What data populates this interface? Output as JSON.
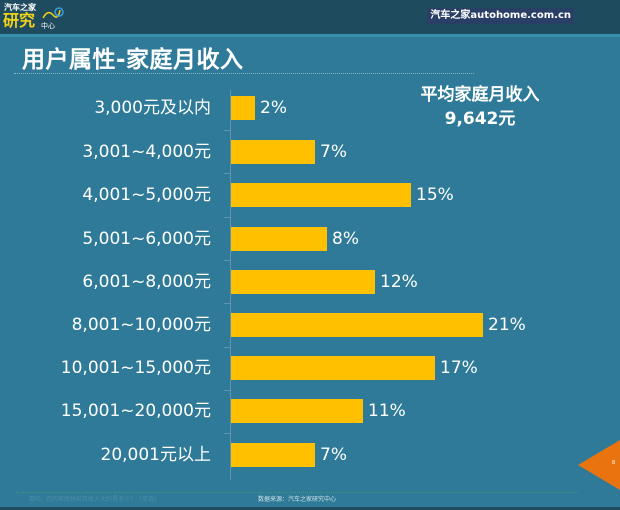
{
  "header": {
    "logo_top": "汽车之家",
    "logo_main": "研究",
    "logo_sub": "中心",
    "brand": "汽车之家autohome.com.cn"
  },
  "page_title": "用户属性-家庭月收入",
  "summary": {
    "label": "平均家庭月收入",
    "value": "9,642元"
  },
  "footer": {
    "question": "请问，您的家庭税前月收入大约是多少？（单选）",
    "source": "数据来源：汽车之家研究中心",
    "page_number": "8"
  },
  "colors": {
    "background": "#2e7a98",
    "bar": "#ffc000",
    "header": "#1f4b5e",
    "badge": "#e8730f"
  },
  "chart_data": {
    "type": "bar",
    "orientation": "horizontal",
    "title": "用户属性-家庭月收入",
    "xlabel": "",
    "ylabel": "",
    "categories": [
      "3,000元及以内",
      "3,001~4,000元",
      "4,001~5,000元",
      "5,001~6,000元",
      "6,001~8,000元",
      "8,001~10,000元",
      "10,001~15,000元",
      "15,001~20,000元",
      "20,001元以上"
    ],
    "values": [
      2,
      7,
      15,
      8,
      12,
      21,
      17,
      11,
      7
    ],
    "value_labels": [
      "2%",
      "7%",
      "15%",
      "8%",
      "12%",
      "21%",
      "17%",
      "11%",
      "7%"
    ],
    "unit": "%",
    "grid": false,
    "legend": "none",
    "annotation": "平均家庭月收入 9,642元"
  }
}
